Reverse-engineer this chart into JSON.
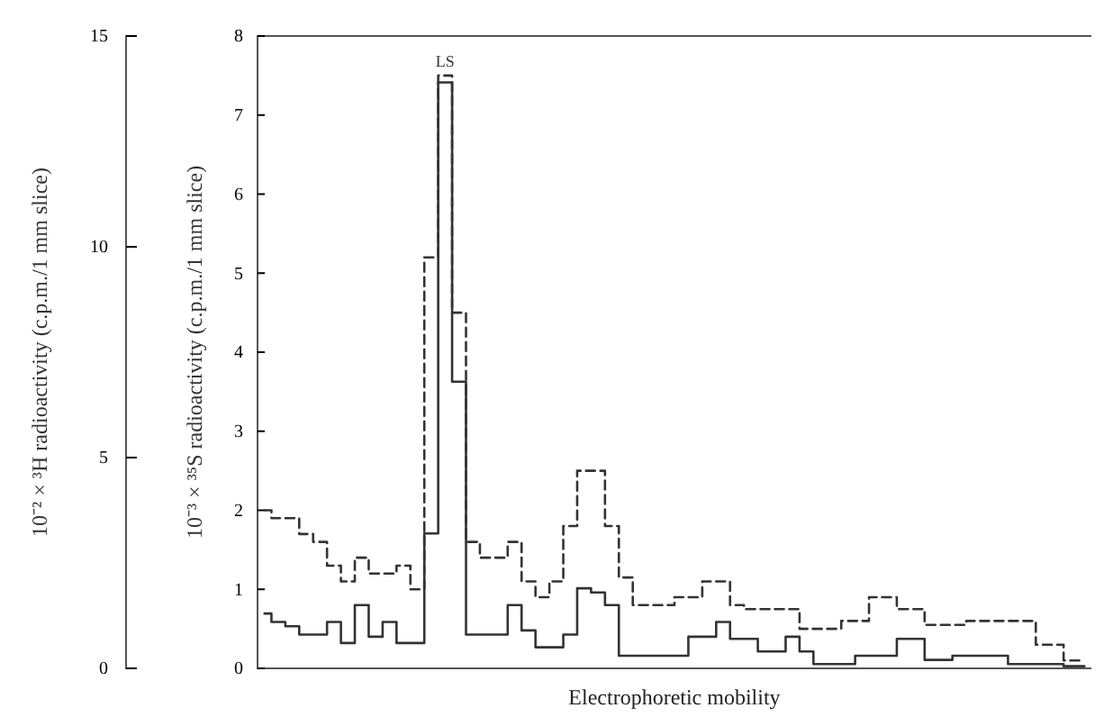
{
  "chart_data": {
    "type": "step",
    "xlabel": "Electrophoretic mobility",
    "ylabel": "10⁻³ × ³⁵S radioactivity (c.p.m./1 mm slice)",
    "y2label": "10⁻² × ³H radioactivity (c.p.m./1 mm slice)",
    "categories": [
      null,
      null,
      null,
      null,
      null,
      null,
      null,
      null,
      null,
      null,
      null,
      null,
      null,
      null,
      null,
      null,
      null,
      null,
      null,
      null,
      null,
      null,
      null,
      null,
      null,
      null,
      null,
      null,
      null,
      null,
      null,
      null,
      null,
      null,
      null,
      null,
      null,
      null,
      null,
      null,
      null,
      null,
      null,
      null,
      null,
      null,
      null,
      null,
      null,
      null,
      null,
      null,
      null,
      null,
      null,
      null,
      null,
      null,
      null,
      null
    ],
    "series": [
      {
        "color": "#333333",
        "line_style": "dashed",
        "values": [
          2.0,
          1.9,
          1.9,
          1.7,
          1.6,
          1.3,
          1.1,
          1.4,
          1.2,
          1.2,
          1.3,
          1.0,
          5.2,
          7.5,
          4.5,
          1.6,
          1.4,
          1.4,
          1.6,
          1.1,
          0.9,
          1.1,
          1.8,
          2.5,
          2.5,
          1.8,
          1.15,
          0.8,
          0.8,
          0.8,
          0.9,
          0.9,
          1.1,
          1.1,
          0.8,
          0.75,
          0.75,
          0.75,
          0.75,
          0.5,
          0.5,
          0.5,
          0.6,
          0.6,
          0.9,
          0.9,
          0.75,
          0.75,
          0.55,
          0.55,
          0.55,
          0.6,
          0.6,
          0.6,
          0.6,
          0.6,
          0.3,
          0.3,
          0.1,
          0.1
        ]
      },
      {
        "color": "#333333",
        "line_style": "solid",
        "axis": "y2",
        "values": [
          1.3,
          1.1,
          1.0,
          0.8,
          0.8,
          1.1,
          0.6,
          1.5,
          0.75,
          1.1,
          0.6,
          0.6,
          3.2,
          13.9,
          6.8,
          0.8,
          0.8,
          0.8,
          1.5,
          0.9,
          0.5,
          0.5,
          0.8,
          1.9,
          1.8,
          1.5,
          0.3,
          0.3,
          0.3,
          0.3,
          0.3,
          0.75,
          0.75,
          1.1,
          0.7,
          0.7,
          0.4,
          0.4,
          0.75,
          0.4,
          0.1,
          0.1,
          0.1,
          0.3,
          0.3,
          0.3,
          0.7,
          0.7,
          0.2,
          0.2,
          0.3,
          0.3,
          0.3,
          0.3,
          0.1,
          0.1,
          0.1,
          0.1,
          0.05,
          0.05
        ]
      }
    ],
    "ylim": [
      0,
      8
    ],
    "yticks": [
      0,
      1,
      2,
      3,
      4,
      5,
      6,
      7,
      8
    ],
    "y2lim": [
      0,
      15
    ],
    "y2ticks": [
      0,
      5,
      10,
      15
    ],
    "annotations": [
      "LS"
    ]
  }
}
